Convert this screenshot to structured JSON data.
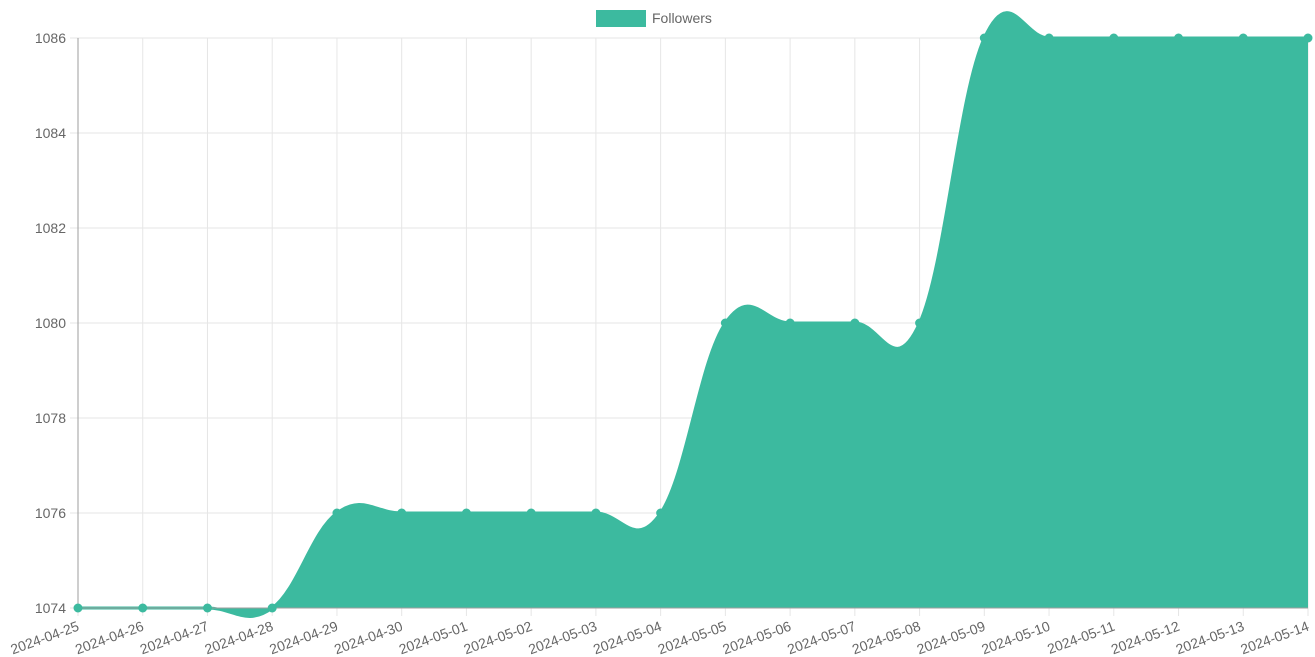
{
  "chart_data": {
    "type": "area",
    "x": [
      "2024-04-25",
      "2024-04-26",
      "2024-04-27",
      "2024-04-28",
      "2024-04-29",
      "2024-04-30",
      "2024-05-01",
      "2024-05-02",
      "2024-05-03",
      "2024-05-04",
      "2024-05-05",
      "2024-05-06",
      "2024-05-07",
      "2024-05-08",
      "2024-05-09",
      "2024-05-10",
      "2024-05-11",
      "2024-05-12",
      "2024-05-13",
      "2024-05-14"
    ],
    "series": [
      {
        "name": "Followers",
        "values": [
          1074,
          1074,
          1074,
          1074,
          1076,
          1076,
          1076,
          1076,
          1076,
          1076,
          1080,
          1080,
          1080,
          1080,
          1086,
          1086,
          1086,
          1086,
          1086,
          1086
        ],
        "color": "#3cba9f"
      }
    ],
    "y_ticks": [
      "1074",
      "1076",
      "1078",
      "1080",
      "1082",
      "1084",
      "1086"
    ],
    "ylim": [
      1074,
      1086
    ],
    "grid": true,
    "legend": "top-center",
    "title": "",
    "xlabel": "",
    "ylabel": ""
  }
}
